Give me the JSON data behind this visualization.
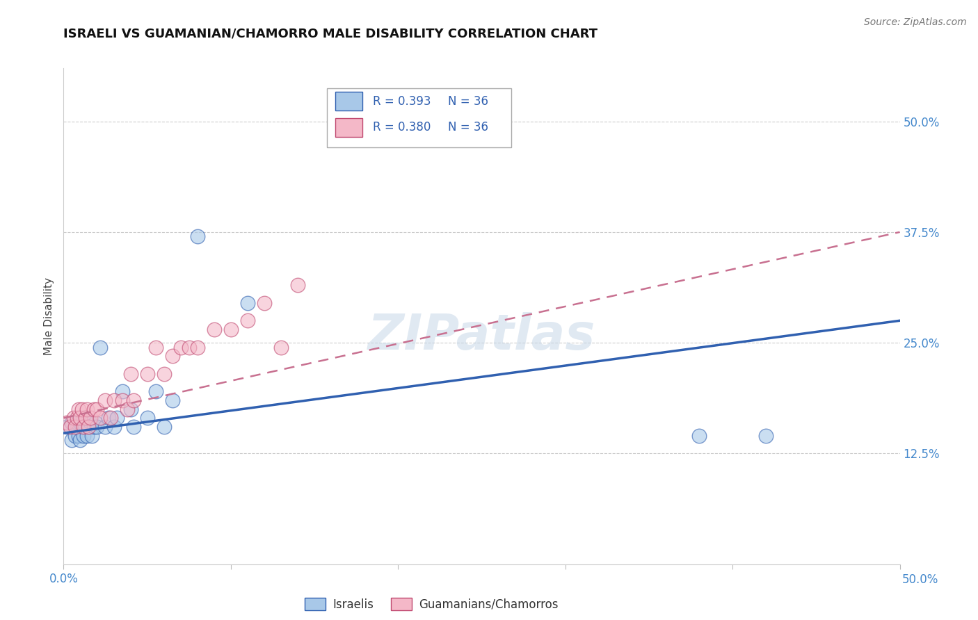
{
  "title": "ISRAELI VS GUAMANIAN/CHAMORRO MALE DISABILITY CORRELATION CHART",
  "source": "Source: ZipAtlas.com",
  "ylabel": "Male Disability",
  "legend_r_blue": "R = 0.393",
  "legend_n_blue": "N = 36",
  "legend_r_pink": "R = 0.380",
  "legend_n_pink": "N = 36",
  "legend_label_blue": "Israelis",
  "legend_label_pink": "Guamanians/Chamorros",
  "blue_color": "#a8c8e8",
  "pink_color": "#f4b8c8",
  "trendline_blue": "#3060b0",
  "trendline_pink": "#c04870",
  "trendline_pink_dashed": "#c87090",
  "background_color": "#ffffff",
  "blue_scatter_x": [
    0.002,
    0.005,
    0.005,
    0.007,
    0.008,
    0.008,
    0.009,
    0.01,
    0.01,
    0.011,
    0.012,
    0.012,
    0.013,
    0.014,
    0.015,
    0.016,
    0.017,
    0.018,
    0.019,
    0.02,
    0.022,
    0.025,
    0.027,
    0.03,
    0.032,
    0.035,
    0.04,
    0.042,
    0.05,
    0.055,
    0.06,
    0.065,
    0.08,
    0.11,
    0.38,
    0.42
  ],
  "blue_scatter_y": [
    0.155,
    0.14,
    0.16,
    0.145,
    0.155,
    0.16,
    0.145,
    0.14,
    0.16,
    0.155,
    0.145,
    0.165,
    0.155,
    0.145,
    0.155,
    0.16,
    0.145,
    0.155,
    0.16,
    0.155,
    0.245,
    0.155,
    0.165,
    0.155,
    0.165,
    0.195,
    0.175,
    0.155,
    0.165,
    0.195,
    0.155,
    0.185,
    0.37,
    0.295,
    0.145,
    0.145
  ],
  "pink_scatter_x": [
    0.002,
    0.004,
    0.006,
    0.007,
    0.008,
    0.009,
    0.01,
    0.011,
    0.012,
    0.013,
    0.014,
    0.015,
    0.016,
    0.018,
    0.02,
    0.022,
    0.025,
    0.028,
    0.03,
    0.035,
    0.038,
    0.04,
    0.042,
    0.05,
    0.055,
    0.06,
    0.065,
    0.07,
    0.075,
    0.08,
    0.09,
    0.1,
    0.11,
    0.12,
    0.13,
    0.14
  ],
  "pink_scatter_x_outlier": [
    0.14
  ],
  "pink_scatter_y": [
    0.16,
    0.155,
    0.165,
    0.155,
    0.165,
    0.175,
    0.165,
    0.175,
    0.155,
    0.165,
    0.175,
    0.155,
    0.165,
    0.175,
    0.175,
    0.165,
    0.185,
    0.165,
    0.185,
    0.185,
    0.175,
    0.215,
    0.185,
    0.215,
    0.245,
    0.215,
    0.235,
    0.245,
    0.245,
    0.245,
    0.265,
    0.265,
    0.275,
    0.295,
    0.245,
    0.315
  ],
  "xlim": [
    0.0,
    0.5
  ],
  "ylim": [
    0.0,
    0.56
  ],
  "ytick_vals": [
    0.125,
    0.25,
    0.375,
    0.5
  ],
  "ytick_labels": [
    "12.5%",
    "25.0%",
    "37.5%",
    "50.0%"
  ],
  "blue_trend_y0": 0.148,
  "blue_trend_y1": 0.275,
  "pink_trend_y0": 0.165,
  "pink_trend_y1": 0.375
}
